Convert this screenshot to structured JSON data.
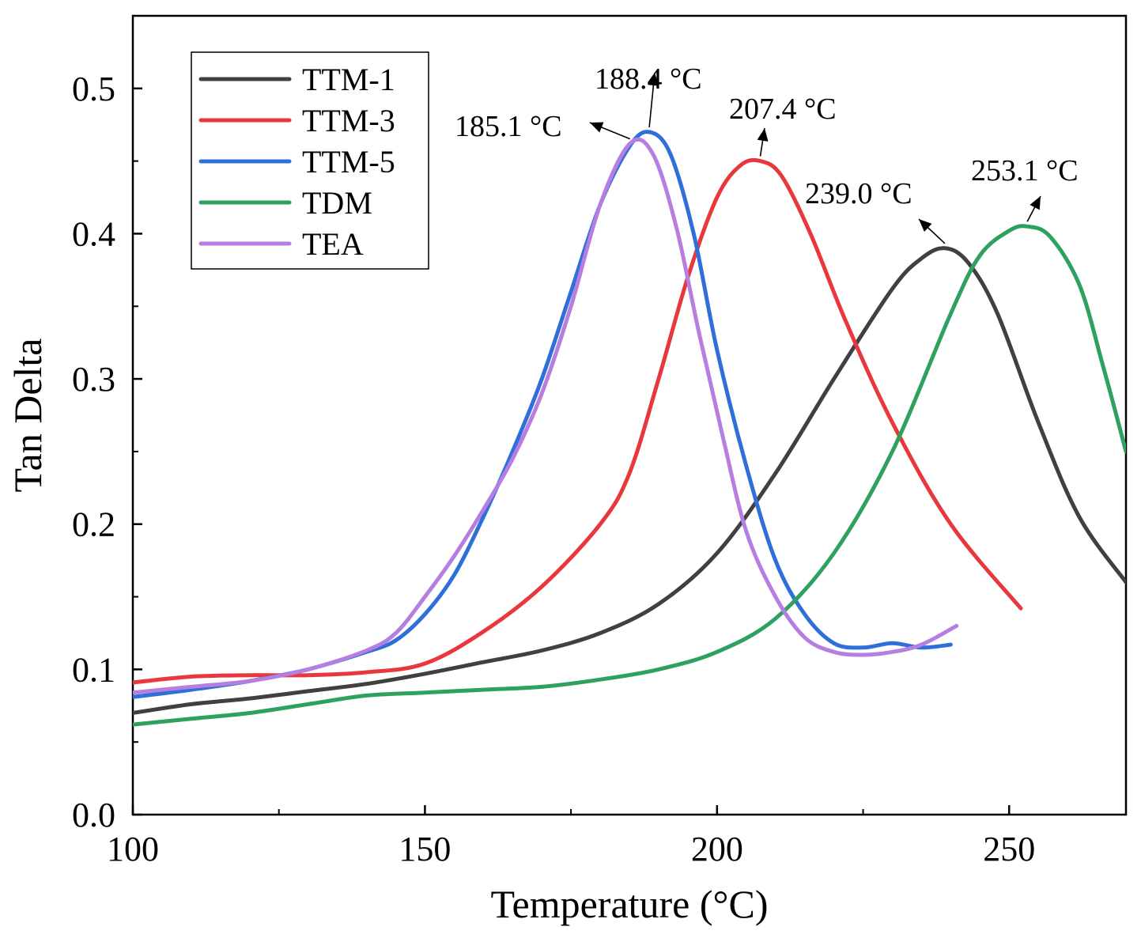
{
  "chart_data": {
    "type": "line",
    "title": "",
    "xlabel": "Temperature (°C)",
    "ylabel": "Tan Delta",
    "xlim": [
      100,
      270
    ],
    "ylim": [
      0.0,
      0.55
    ],
    "x_ticks": [
      "100",
      "150",
      "200",
      "250"
    ],
    "y_ticks": [
      "0.0",
      "0.1",
      "0.2",
      "0.3",
      "0.4",
      "0.5"
    ],
    "grid": false,
    "legend_position": "top-left",
    "series": [
      {
        "name": "TTM-1",
        "color": "#404040",
        "x": [
          100,
          110,
          120,
          130,
          140,
          150,
          160,
          170,
          180,
          190,
          200,
          210,
          220,
          230,
          235,
          239,
          243,
          248,
          255,
          262,
          270
        ],
        "y": [
          0.07,
          0.076,
          0.08,
          0.085,
          0.09,
          0.097,
          0.105,
          0.113,
          0.125,
          0.145,
          0.18,
          0.235,
          0.3,
          0.362,
          0.383,
          0.39,
          0.38,
          0.345,
          0.27,
          0.205,
          0.16
        ]
      },
      {
        "name": "TTM-3",
        "color": "#e8383d",
        "x": [
          100,
          110,
          120,
          130,
          140,
          150,
          160,
          170,
          180,
          185,
          190,
          195,
          200,
          204,
          207.4,
          211,
          216,
          222,
          230,
          240,
          252
        ],
        "y": [
          0.091,
          0.095,
          0.096,
          0.096,
          0.098,
          0.104,
          0.126,
          0.157,
          0.2,
          0.235,
          0.3,
          0.37,
          0.425,
          0.447,
          0.45,
          0.44,
          0.4,
          0.34,
          0.27,
          0.2,
          0.142
        ]
      },
      {
        "name": "TTM-5",
        "color": "#2e6fd9",
        "x": [
          100,
          110,
          120,
          130,
          140,
          145,
          150,
          155,
          160,
          165,
          170,
          175,
          180,
          185,
          188.4,
          192,
          196,
          200,
          205,
          210,
          215,
          220,
          225,
          230,
          235,
          240
        ],
        "y": [
          0.081,
          0.086,
          0.092,
          0.1,
          0.112,
          0.12,
          0.138,
          0.165,
          0.205,
          0.25,
          0.3,
          0.36,
          0.42,
          0.46,
          0.47,
          0.455,
          0.4,
          0.32,
          0.24,
          0.175,
          0.138,
          0.118,
          0.115,
          0.118,
          0.115,
          0.117
        ]
      },
      {
        "name": "TDM",
        "color": "#2ea060",
        "x": [
          100,
          110,
          120,
          130,
          140,
          150,
          160,
          170,
          180,
          190,
          200,
          210,
          220,
          230,
          240,
          245,
          250,
          253.1,
          257,
          262,
          266,
          270
        ],
        "y": [
          0.062,
          0.066,
          0.07,
          0.076,
          0.082,
          0.084,
          0.086,
          0.088,
          0.093,
          0.1,
          0.112,
          0.135,
          0.18,
          0.25,
          0.345,
          0.385,
          0.402,
          0.405,
          0.398,
          0.365,
          0.31,
          0.25
        ]
      },
      {
        "name": "TEA",
        "color": "#b57ee0",
        "x": [
          100,
          110,
          120,
          130,
          140,
          145,
          150,
          155,
          160,
          165,
          170,
          175,
          180,
          185.1,
          189,
          193,
          197,
          201,
          205,
          210,
          215,
          220,
          225,
          230,
          235,
          241
        ],
        "y": [
          0.084,
          0.088,
          0.092,
          0.1,
          0.113,
          0.125,
          0.15,
          0.178,
          0.21,
          0.245,
          0.29,
          0.35,
          0.42,
          0.462,
          0.455,
          0.405,
          0.33,
          0.26,
          0.195,
          0.15,
          0.122,
          0.112,
          0.11,
          0.112,
          0.117,
          0.13
        ]
      }
    ],
    "annotations": [
      {
        "text": "185.1 °C",
        "peak_x": 185.1,
        "peak_y": 0.462
      },
      {
        "text": "188.4 °C",
        "peak_x": 188.4,
        "peak_y": 0.47
      },
      {
        "text": "207.4 °C",
        "peak_x": 207.4,
        "peak_y": 0.45
      },
      {
        "text": "239.0 °C",
        "peak_x": 239.0,
        "peak_y": 0.39
      },
      {
        "text": "253.1 °C",
        "peak_x": 253.1,
        "peak_y": 0.405
      }
    ]
  }
}
